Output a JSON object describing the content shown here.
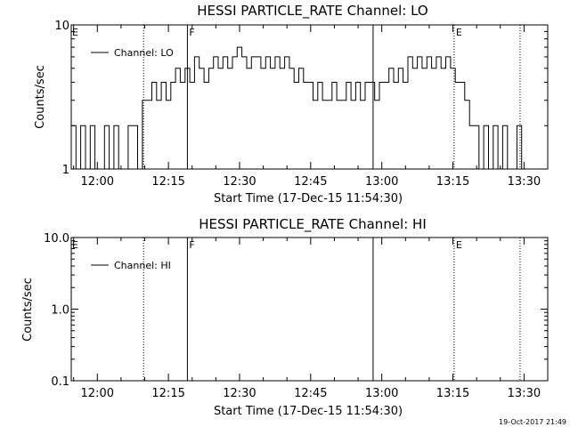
{
  "chart_data": [
    {
      "type": "line",
      "title": "HESSI PARTICLE_RATE Channel: LO",
      "xlabel": "Start Time (17-Dec-15 11:54:30)",
      "ylabel": "Counts/sec",
      "yscale": "log",
      "ylim": [
        1,
        10
      ],
      "ytick_labels": [
        "1",
        "10"
      ],
      "xlim": [
        "11:54:30",
        "13:35:00"
      ],
      "xtick_labels": [
        "12:00",
        "12:15",
        "12:30",
        "12:45",
        "13:00",
        "13:15",
        "13:30"
      ],
      "legend": {
        "placement": "top-left",
        "entries": [
          "Channel: LO"
        ]
      },
      "grid": false,
      "vlines": [
        {
          "time": "12:09:45",
          "style": "dotted"
        },
        {
          "time": "12:19:00",
          "style": "solid",
          "label": "F"
        },
        {
          "time": "12:58:10",
          "style": "solid"
        },
        {
          "time": "13:15:15",
          "style": "dotted",
          "label": "E"
        },
        {
          "time": "13:29:10",
          "style": "dotted"
        }
      ],
      "flag_labels": [
        {
          "time": "11:54:30",
          "label": "E"
        }
      ],
      "series": [
        {
          "x": [
            "11:55:00",
            "11:56:00",
            "11:57:00",
            "11:58:00",
            "11:59:00",
            "12:00:00",
            "12:01:00",
            "12:02:00",
            "12:03:00",
            "12:04:00",
            "12:05:00",
            "12:06:00",
            "12:07:00",
            "12:08:00",
            "12:09:00",
            "12:10:00",
            "12:11:00",
            "12:12:00",
            "12:13:00",
            "12:14:00",
            "12:15:00",
            "12:16:00",
            "12:17:00",
            "12:18:00",
            "12:19:00",
            "12:20:00",
            "12:21:00",
            "12:22:00",
            "12:23:00",
            "12:24:00",
            "12:25:00",
            "12:26:00",
            "12:27:00",
            "12:28:00",
            "12:29:00",
            "12:30:00",
            "12:31:00",
            "12:32:00",
            "12:33:00",
            "12:34:00",
            "12:35:00",
            "12:36:00",
            "12:37:00",
            "12:38:00",
            "12:39:00",
            "12:40:00",
            "12:41:00",
            "12:42:00",
            "12:43:00",
            "12:44:00",
            "12:45:00",
            "12:46:00",
            "12:47:00",
            "12:48:00",
            "12:49:00",
            "12:50:00",
            "12:51:00",
            "12:52:00",
            "12:53:00",
            "12:54:00",
            "12:55:00",
            "12:56:00",
            "12:57:00",
            "12:58:00",
            "12:59:00",
            "13:00:00",
            "13:01:00",
            "13:02:00",
            "13:03:00",
            "13:04:00",
            "13:05:00",
            "13:06:00",
            "13:07:00",
            "13:08:00",
            "13:09:00",
            "13:10:00",
            "13:11:00",
            "13:12:00",
            "13:13:00",
            "13:14:00",
            "13:15:00",
            "13:16:00",
            "13:17:00",
            "13:18:00",
            "13:19:00",
            "13:20:00",
            "13:21:00",
            "13:22:00",
            "13:23:00",
            "13:24:00",
            "13:25:00",
            "13:26:00",
            "13:27:00",
            "13:28:00",
            "13:29:00",
            "13:30:00",
            "13:31:00",
            "13:32:00",
            "13:33:00",
            "13:34:00"
          ],
          "y": [
            2,
            1,
            2,
            1,
            2,
            1,
            1,
            2,
            1,
            2,
            1,
            1,
            2,
            2,
            1,
            3,
            3,
            4,
            3,
            4,
            3,
            4,
            5,
            4,
            5,
            4,
            6,
            5,
            4,
            5,
            6,
            5,
            6,
            5,
            6,
            7,
            6,
            5,
            6,
            6,
            5,
            6,
            5,
            6,
            5,
            6,
            5,
            4,
            5,
            4,
            4,
            3,
            4,
            3,
            3,
            4,
            3,
            3,
            4,
            3,
            4,
            3,
            4,
            4,
            3,
            4,
            4,
            5,
            4,
            5,
            4,
            6,
            5,
            6,
            5,
            6,
            5,
            6,
            5,
            6,
            5,
            4,
            4,
            3,
            2,
            2,
            1,
            2,
            1,
            2,
            1,
            2,
            1,
            1,
            2,
            1,
            1,
            1,
            1,
            1
          ]
        }
      ]
    },
    {
      "type": "line",
      "title": "HESSI PARTICLE_RATE Channel: HI",
      "xlabel": "Start Time (17-Dec-15 11:54:30)",
      "ylabel": "Counts/sec",
      "yscale": "log",
      "ylim": [
        0.1,
        10
      ],
      "ytick_labels": [
        "0.1",
        "1.0",
        "10.0"
      ],
      "xlim": [
        "11:54:30",
        "13:35:00"
      ],
      "xtick_labels": [
        "12:00",
        "12:15",
        "12:30",
        "12:45",
        "13:00",
        "13:15",
        "13:30"
      ],
      "legend": {
        "placement": "top-left",
        "entries": [
          "Channel: HI"
        ]
      },
      "grid": false,
      "vlines": [
        {
          "time": "12:09:45",
          "style": "dotted"
        },
        {
          "time": "12:19:00",
          "style": "solid",
          "label": "F"
        },
        {
          "time": "12:58:10",
          "style": "solid"
        },
        {
          "time": "13:15:15",
          "style": "dotted",
          "label": "E"
        },
        {
          "time": "13:29:10",
          "style": "dotted"
        }
      ],
      "flag_labels": [
        {
          "time": "11:54:30",
          "label": "E"
        }
      ],
      "series": [
        {
          "x": [],
          "y": []
        }
      ]
    }
  ],
  "timestamp": "19-Oct-2017 21:49"
}
